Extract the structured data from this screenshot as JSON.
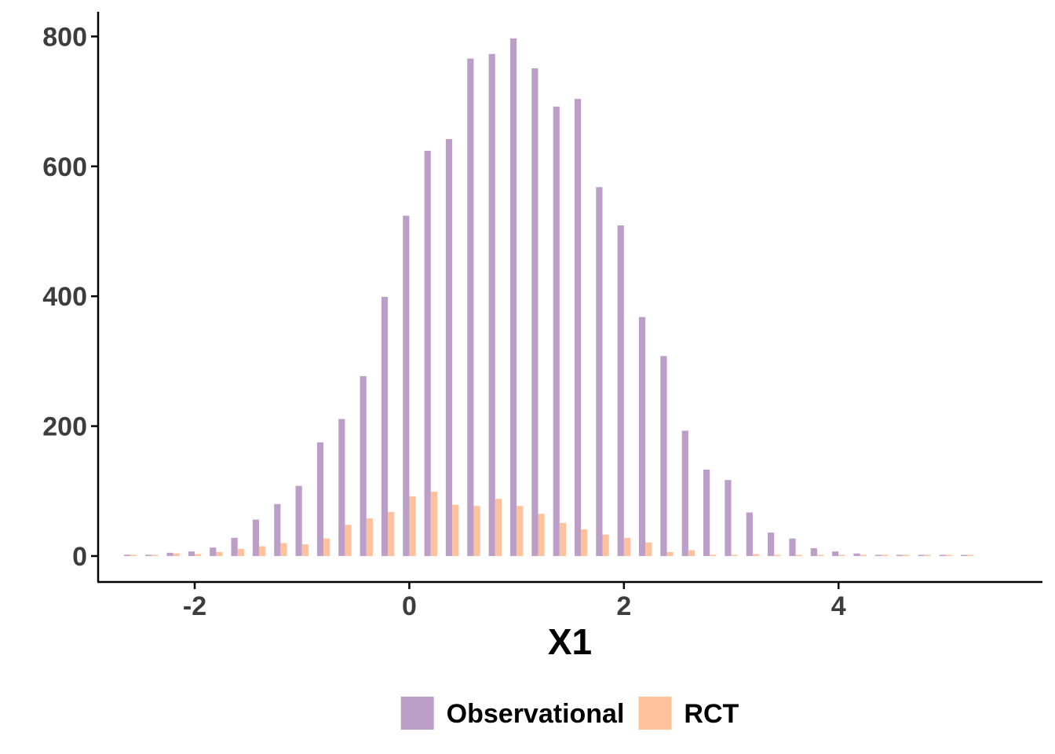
{
  "chart_data": {
    "type": "bar",
    "title": "",
    "xlabel": "X1",
    "ylabel": "",
    "xlim": [
      -2.9,
      5.9
    ],
    "ylim": [
      -40,
      838
    ],
    "x_ticks": [
      -2,
      0,
      2,
      4
    ],
    "y_ticks": [
      0,
      200,
      400,
      600,
      800
    ],
    "grid": false,
    "legend_position": "bottom",
    "bin_width": 0.2,
    "x": [
      -2.6,
      -2.4,
      -2.2,
      -2.0,
      -1.8,
      -1.6,
      -1.4,
      -1.2,
      -1.0,
      -0.8,
      -0.6,
      -0.4,
      -0.2,
      0.0,
      0.2,
      0.4,
      0.6,
      0.8,
      1.0,
      1.2,
      1.4,
      1.6,
      1.8,
      2.0,
      2.2,
      2.4,
      2.6,
      2.8,
      3.0,
      3.2,
      3.4,
      3.6,
      3.8,
      4.0,
      4.2,
      4.4,
      4.6,
      4.8,
      5.0,
      5.2
    ],
    "series": [
      {
        "name": "Observational",
        "color": "#BC9FC9",
        "values": [
          2,
          2,
          5,
          7,
          13,
          28,
          56,
          80,
          108,
          175,
          211,
          277,
          399,
          524,
          624,
          642,
          766,
          773,
          797,
          751,
          692,
          704,
          568,
          509,
          368,
          308,
          193,
          133,
          117,
          67,
          36,
          27,
          12,
          7,
          4,
          1,
          1,
          0,
          1,
          1
        ]
      },
      {
        "name": "RCT",
        "color": "#FFC29D",
        "values": [
          1,
          1,
          4,
          3,
          6,
          11,
          15,
          20,
          18,
          27,
          48,
          58,
          68,
          92,
          99,
          79,
          77,
          88,
          77,
          65,
          51,
          41,
          33,
          28,
          21,
          6,
          9,
          2,
          1,
          3,
          0,
          1,
          0,
          0,
          0,
          0,
          0,
          0,
          1,
          0
        ]
      }
    ]
  }
}
